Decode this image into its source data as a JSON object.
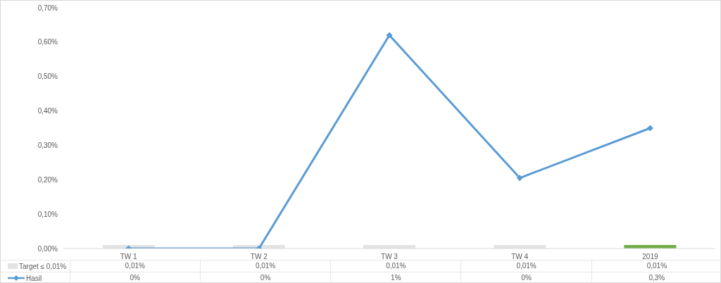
{
  "chart_data": {
    "type": "bar",
    "categories": [
      "TW 1",
      "TW 2",
      "TW 3",
      "TW 4",
      "2019"
    ],
    "series": [
      {
        "name": "Target ≤ 0,01%",
        "colors": [
          "#e3e3e3",
          "#e3e3e3",
          "#e3e3e3",
          "#e3e3e3",
          "#70ad47"
        ],
        "color": "#e3e3e3",
        "values": [
          0.01,
          0.01,
          0.01,
          0.01,
          0.01
        ],
        "value_labels": [
          "0,01%",
          "0,01%",
          "0,01%",
          "0,01%",
          "0,01%"
        ]
      },
      {
        "name": "Hasil",
        "type": "line",
        "color": "#5b9bd5",
        "marker": "diamond",
        "values": [
          0,
          0,
          0.62,
          0.205,
          0.35
        ],
        "value_labels": [
          "0%",
          "0%",
          "1%",
          "0%",
          "0,3%"
        ]
      }
    ],
    "ylim": [
      0,
      0.7
    ],
    "yticks": [
      {
        "value": 0,
        "label": "0,00%"
      },
      {
        "value": 0.1,
        "label": "0,10%"
      },
      {
        "value": 0.2,
        "label": "0,20%"
      },
      {
        "value": 0.3,
        "label": "0,30%"
      },
      {
        "value": 0.4,
        "label": "0,40%"
      },
      {
        "value": 0.5,
        "label": "0,50%"
      },
      {
        "value": 0.6,
        "label": "0,60%"
      },
      {
        "value": 0.7,
        "label": "0,70%"
      }
    ],
    "legend": "bottom"
  }
}
